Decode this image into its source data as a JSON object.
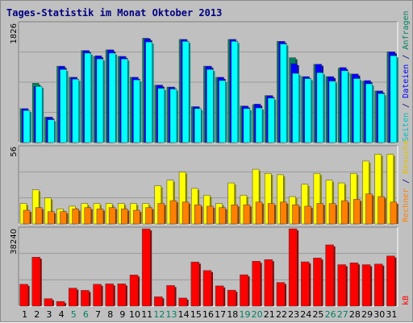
{
  "chart_data": {
    "type": "bar",
    "title": "Tages-Statistik im Monat Oktober 2013",
    "days": [
      "1",
      "2",
      "3",
      "4",
      "5",
      "6",
      "7",
      "8",
      "9",
      "10",
      "11",
      "12",
      "13",
      "14",
      "15",
      "16",
      "17",
      "18",
      "19",
      "20",
      "21",
      "22",
      "23",
      "24",
      "25",
      "26",
      "27",
      "28",
      "29",
      "30",
      "31"
    ],
    "weekend_days": [
      "5",
      "6",
      "12",
      "13",
      "19",
      "20",
      "26",
      "27"
    ],
    "colors": {
      "anfragen": "#008060",
      "dateien": "#0000ff",
      "seiten": "#00ffff",
      "besuche": "#ffff00",
      "rechner": "#ff8000",
      "kb": "#ff0000",
      "weekday_label": "#000000",
      "weekend_label": "#008060",
      "title": "#000080"
    },
    "panels": [
      {
        "id": "top",
        "ymax": 1826,
        "ymax_label": "1826",
        "legend": [
          "Anfragen",
          "Dateien",
          "Seiten"
        ],
        "series": [
          {
            "name": "Anfragen",
            "values": [
              520,
              910,
              390,
              1170,
              1000,
              1410,
              1320,
              1420,
              1320,
              1000,
              1600,
              880,
              850,
              1580,
              550,
              1170,
              1000,
              1580,
              560,
              580,
              720,
              1550,
              1300,
              1010,
              1200,
              1010,
              1140,
              1050,
              940,
              790,
              1390
            ]
          },
          {
            "name": "Dateien",
            "values": [
              520,
              860,
              390,
              1170,
              1000,
              1410,
              1330,
              1420,
              1320,
              1000,
              1590,
              880,
              850,
              1580,
              550,
              1170,
              1000,
              1580,
              560,
              590,
              720,
              1550,
              1210,
              1010,
              1200,
              1010,
              1150,
              1050,
              950,
              790,
              1390
            ]
          },
          {
            "name": "Seiten",
            "values": [
              490,
              860,
              350,
              1120,
              970,
              1370,
              1280,
              1370,
              1280,
              960,
              1540,
              830,
              820,
              1550,
              520,
              1120,
              950,
              1550,
              520,
              530,
              680,
              1510,
              1060,
              980,
              1070,
              940,
              1100,
              980,
              900,
              750,
              1330
            ]
          }
        ]
      },
      {
        "id": "mid",
        "ymax": 56,
        "ymax_label": "56",
        "legend": [
          "Besuche",
          "Rechner"
        ],
        "series": [
          {
            "name": "Besuche",
            "values": [
              15,
              25,
              19,
              11,
              13,
              15,
              15,
              15,
              15,
              15,
              15,
              28,
              32,
              38,
              26,
              21,
              15,
              30,
              21,
              40,
              37,
              36,
              20,
              29,
              37,
              32,
              30,
              37,
              46,
              51,
              51
            ]
          },
          {
            "name": "Rechner",
            "values": [
              10,
              12,
              9,
              9,
              11,
              12,
              11,
              12,
              11,
              10,
              12,
              15,
              17,
              16,
              14,
              13,
              12,
              14,
              14,
              16,
              15,
              16,
              14,
              13,
              15,
              15,
              17,
              18,
              22,
              20,
              16
            ]
          }
        ]
      },
      {
        "id": "bot",
        "ymax": 38240,
        "ymax_label": "38240",
        "legend": [
          "kB"
        ],
        "series": [
          {
            "name": "kB",
            "values": [
              10800,
              24200,
              3700,
              2300,
              8900,
              7800,
              10800,
              11000,
              11000,
              15400,
              38200,
              4600,
              10200,
              4000,
              21800,
              17600,
              10000,
              7900,
              15500,
              22200,
              23000,
              11700,
              38240,
              21900,
              23800,
              30300,
              20500,
              21400,
              20500,
              20800,
              24800
            ]
          }
        ]
      }
    ]
  }
}
